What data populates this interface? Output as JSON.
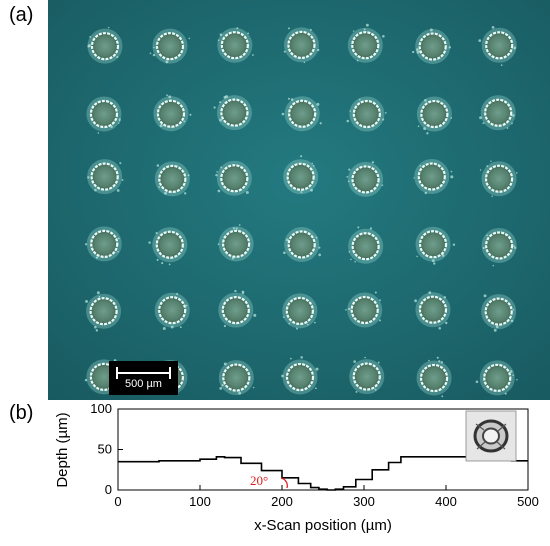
{
  "figure": {
    "panel_a_label": "(a)",
    "panel_b_label": "(b)",
    "scale_bar_label": "500 µm",
    "substrate_color": "#1f6b70",
    "hole_grid": {
      "rows": 6,
      "columns": 7
    }
  },
  "chart_data": {
    "type": "line",
    "xlabel": "x-Scan position (µm)",
    "ylabel": "Depth (µm)",
    "xlim": [
      0,
      500
    ],
    "ylim": [
      0,
      100
    ],
    "xticks": [
      "0",
      "100",
      "200",
      "300",
      "400",
      "500"
    ],
    "yticks": [
      "0",
      "50",
      "100"
    ],
    "annotation": "20°",
    "series": [
      {
        "x": [
          0,
          50,
          100,
          120,
          130,
          150,
          175,
          200,
          220,
          235,
          245,
          255,
          265,
          275,
          290,
          310,
          330,
          345,
          380,
          420,
          460,
          480,
          500
        ],
        "y": [
          35,
          36,
          38,
          41,
          40,
          33,
          24,
          15,
          8,
          3,
          1,
          0,
          1,
          4,
          13,
          25,
          34,
          41,
          41,
          41,
          38,
          36,
          36
        ]
      }
    ]
  }
}
